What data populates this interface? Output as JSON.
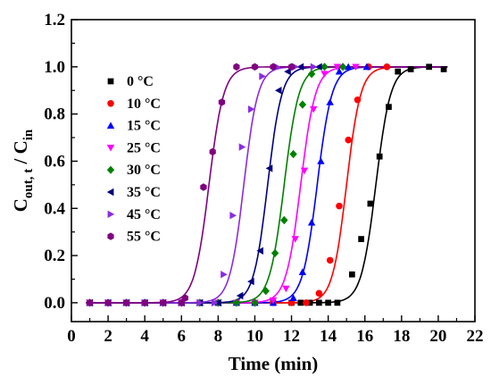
{
  "chart_data": {
    "type": "scatter",
    "xlabel": "Time (min)",
    "ylabel": "C_out, t / C_in",
    "ylabel_parts": {
      "c1": "C",
      "sub1": "out, t",
      "slash": " / C",
      "sub2": "in"
    },
    "xlim": [
      0,
      22
    ],
    "ylim": [
      -0.08,
      1.2
    ],
    "xticks": [
      0,
      2,
      4,
      6,
      8,
      10,
      12,
      14,
      16,
      18,
      20,
      22
    ],
    "yticks": [
      0.0,
      0.2,
      0.4,
      0.6,
      0.8,
      1.0,
      1.2
    ],
    "ytick_labels": [
      "0.0",
      "0.2",
      "0.4",
      "0.6",
      "0.8",
      "1.0",
      "1.2"
    ],
    "legend_position": "upper-left",
    "series": [
      {
        "name": "0 °C",
        "color": "#000000",
        "marker": "square",
        "t50": 16.6,
        "k": 2.5,
        "x": [
          1,
          2,
          3,
          4,
          5,
          6,
          7,
          8,
          9,
          10,
          11,
          12,
          12.5,
          13,
          13.5,
          14,
          14.5,
          15.3,
          15.8,
          16.3,
          16.8,
          17.3,
          17.8,
          18.5,
          19.5,
          20.3
        ],
        "y": [
          0,
          0,
          0,
          0,
          0,
          0,
          0,
          0,
          0,
          0,
          0,
          0,
          0,
          0,
          0,
          0,
          0,
          0.12,
          0.27,
          0.42,
          0.62,
          0.83,
          0.98,
          0.99,
          1.0,
          0.99
        ]
      },
      {
        "name": "10 °C",
        "color": "#ff0000",
        "marker": "circle",
        "t50": 15.0,
        "k": 2.6,
        "x": [
          1,
          2,
          3,
          4,
          5,
          6,
          7,
          8,
          9,
          10,
          11,
          12,
          12.8,
          13.5,
          14.1,
          14.6,
          15.1,
          15.6,
          16.2,
          17.2
        ],
        "y": [
          0,
          0,
          0,
          0,
          0,
          0,
          0,
          0,
          0,
          0,
          0,
          0,
          0,
          0.04,
          0.18,
          0.41,
          0.69,
          0.86,
          1.0,
          1.0
        ]
      },
      {
        "name": "15 °C",
        "color": "#0000ff",
        "marker": "triangle-up",
        "t50": 13.4,
        "k": 2.5,
        "x": [
          1,
          2,
          3,
          4,
          5,
          6,
          7,
          8,
          9,
          10,
          11,
          12.1,
          12.6,
          13.1,
          13.6,
          14.1,
          14.6,
          15.1,
          16.1
        ],
        "y": [
          0,
          0,
          0,
          0,
          0,
          0,
          0,
          0,
          0,
          0,
          0,
          0.02,
          0.13,
          0.34,
          0.6,
          0.85,
          0.98,
          1.0,
          1.0
        ]
      },
      {
        "name": "25 °C",
        "color": "#ff00ff",
        "marker": "triangle-down",
        "t50": 12.5,
        "k": 2.5,
        "x": [
          1,
          2,
          3,
          4,
          5,
          6,
          7,
          8,
          9,
          10,
          11,
          11.7,
          12.2,
          12.7,
          13.2,
          13.8,
          14.5,
          15.5
        ],
        "y": [
          0,
          0,
          0,
          0,
          0,
          0,
          0,
          0,
          0,
          0,
          0.01,
          0.06,
          0.27,
          0.56,
          0.82,
          0.97,
          1.0,
          1.0
        ]
      },
      {
        "name": "30 °C",
        "color": "#008000",
        "marker": "diamond",
        "t50": 11.6,
        "k": 2.5,
        "x": [
          1,
          2,
          3,
          4,
          5,
          6,
          7,
          8,
          9,
          10,
          10.6,
          11.1,
          11.6,
          12.1,
          12.6,
          13.1,
          13.8,
          14.8
        ],
        "y": [
          0,
          0,
          0,
          0,
          0,
          0,
          0,
          0,
          0,
          0,
          0.05,
          0.21,
          0.35,
          0.63,
          0.84,
          0.97,
          1.0,
          1.0
        ]
      },
      {
        "name": "35 °C",
        "color": "#000080",
        "marker": "triangle-left",
        "t50": 10.7,
        "k": 2.6,
        "x": [
          1,
          2,
          3,
          4,
          5,
          6,
          7,
          8,
          9.2,
          9.8,
          10.3,
          10.8,
          11.3,
          11.8,
          12.5,
          13.5
        ],
        "y": [
          0,
          0,
          0,
          0,
          0,
          0,
          0,
          0,
          0.03,
          0.09,
          0.22,
          0.57,
          0.9,
          0.98,
          1.0,
          1.0
        ]
      },
      {
        "name": "45 °C",
        "color": "#8a2be2",
        "marker": "triangle-right",
        "t50": 9.4,
        "k": 2.6,
        "x": [
          1,
          2,
          3,
          4,
          5,
          6,
          7,
          7.8,
          8.3,
          8.8,
          9.3,
          9.8,
          10.4,
          11.2,
          12.2,
          13.2
        ],
        "y": [
          0,
          0,
          0,
          0,
          0,
          0,
          0,
          0,
          0.12,
          0.37,
          0.66,
          0.82,
          0.96,
          1.0,
          1.0,
          1.0
        ]
      },
      {
        "name": "55 °C",
        "color": "#800080",
        "marker": "hexagon",
        "t50": 7.5,
        "k": 2.5,
        "x": [
          1,
          2,
          3,
          4,
          5,
          6,
          6.2,
          7.2,
          7.7,
          8.2,
          9.0,
          10.0,
          11.0,
          12.0
        ],
        "y": [
          0,
          0,
          0,
          0,
          0,
          0,
          0.02,
          0.49,
          0.64,
          0.85,
          1.0,
          1.0,
          1.0,
          1.0
        ]
      }
    ]
  }
}
